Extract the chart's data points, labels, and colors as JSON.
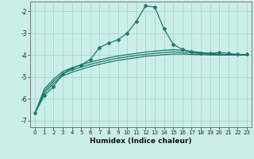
{
  "xlabel": "Humidex (Indice chaleur)",
  "background_color": "#cceee8",
  "grid_color": "#aad4ce",
  "line_color": "#1a7a6e",
  "ylim": [
    -7.3,
    -1.55
  ],
  "xlim": [
    -0.5,
    23.5
  ],
  "yticks": [
    -7,
    -6,
    -5,
    -4,
    -3,
    -2
  ],
  "xticks": [
    0,
    1,
    2,
    3,
    4,
    5,
    6,
    7,
    8,
    9,
    10,
    11,
    12,
    13,
    14,
    15,
    16,
    17,
    18,
    19,
    20,
    21,
    22,
    23
  ],
  "series1_x": [
    0,
    1,
    2,
    3,
    4,
    5,
    6,
    7,
    8,
    9,
    10,
    11,
    12,
    13,
    14,
    15,
    16,
    17,
    18,
    19,
    20,
    21,
    22,
    23
  ],
  "series1_y": [
    -6.65,
    -5.85,
    -5.45,
    -4.85,
    -4.6,
    -4.45,
    -4.2,
    -3.65,
    -3.45,
    -3.3,
    -3.0,
    -2.45,
    -1.75,
    -1.8,
    -2.8,
    -3.5,
    -3.75,
    -3.85,
    -3.92,
    -3.92,
    -3.88,
    -3.92,
    -3.97,
    -3.97
  ],
  "series2_x": [
    0,
    1,
    2,
    3,
    4,
    5,
    6,
    7,
    8,
    9,
    10,
    11,
    12,
    13,
    14,
    15,
    16,
    17,
    18,
    19,
    20,
    21,
    22,
    23
  ],
  "series2_y": [
    -6.65,
    -5.75,
    -5.3,
    -4.95,
    -4.78,
    -4.65,
    -4.52,
    -4.42,
    -4.32,
    -4.24,
    -4.18,
    -4.12,
    -4.05,
    -4.02,
    -3.98,
    -3.95,
    -3.95,
    -3.97,
    -3.98,
    -3.99,
    -4.0,
    -4.0,
    -4.0,
    -4.0
  ],
  "series3_x": [
    0,
    1,
    2,
    3,
    4,
    5,
    6,
    7,
    8,
    9,
    10,
    11,
    12,
    13,
    14,
    15,
    16,
    17,
    18,
    19,
    20,
    21,
    22,
    23
  ],
  "series3_y": [
    -6.65,
    -5.65,
    -5.2,
    -4.85,
    -4.68,
    -4.55,
    -4.42,
    -4.32,
    -4.22,
    -4.14,
    -4.08,
    -4.02,
    -3.96,
    -3.92,
    -3.88,
    -3.85,
    -3.87,
    -3.9,
    -3.93,
    -3.96,
    -3.98,
    -3.99,
    -4.0,
    -4.0
  ],
  "series4_x": [
    0,
    1,
    2,
    3,
    4,
    5,
    6,
    7,
    8,
    9,
    10,
    11,
    12,
    13,
    14,
    15,
    16,
    17,
    18,
    19,
    20,
    21,
    22,
    23
  ],
  "series4_y": [
    -6.65,
    -5.55,
    -5.1,
    -4.75,
    -4.58,
    -4.45,
    -4.32,
    -4.22,
    -4.12,
    -4.04,
    -3.98,
    -3.92,
    -3.86,
    -3.82,
    -3.78,
    -3.75,
    -3.78,
    -3.83,
    -3.88,
    -3.92,
    -3.96,
    -3.98,
    -4.0,
    -4.0
  ]
}
